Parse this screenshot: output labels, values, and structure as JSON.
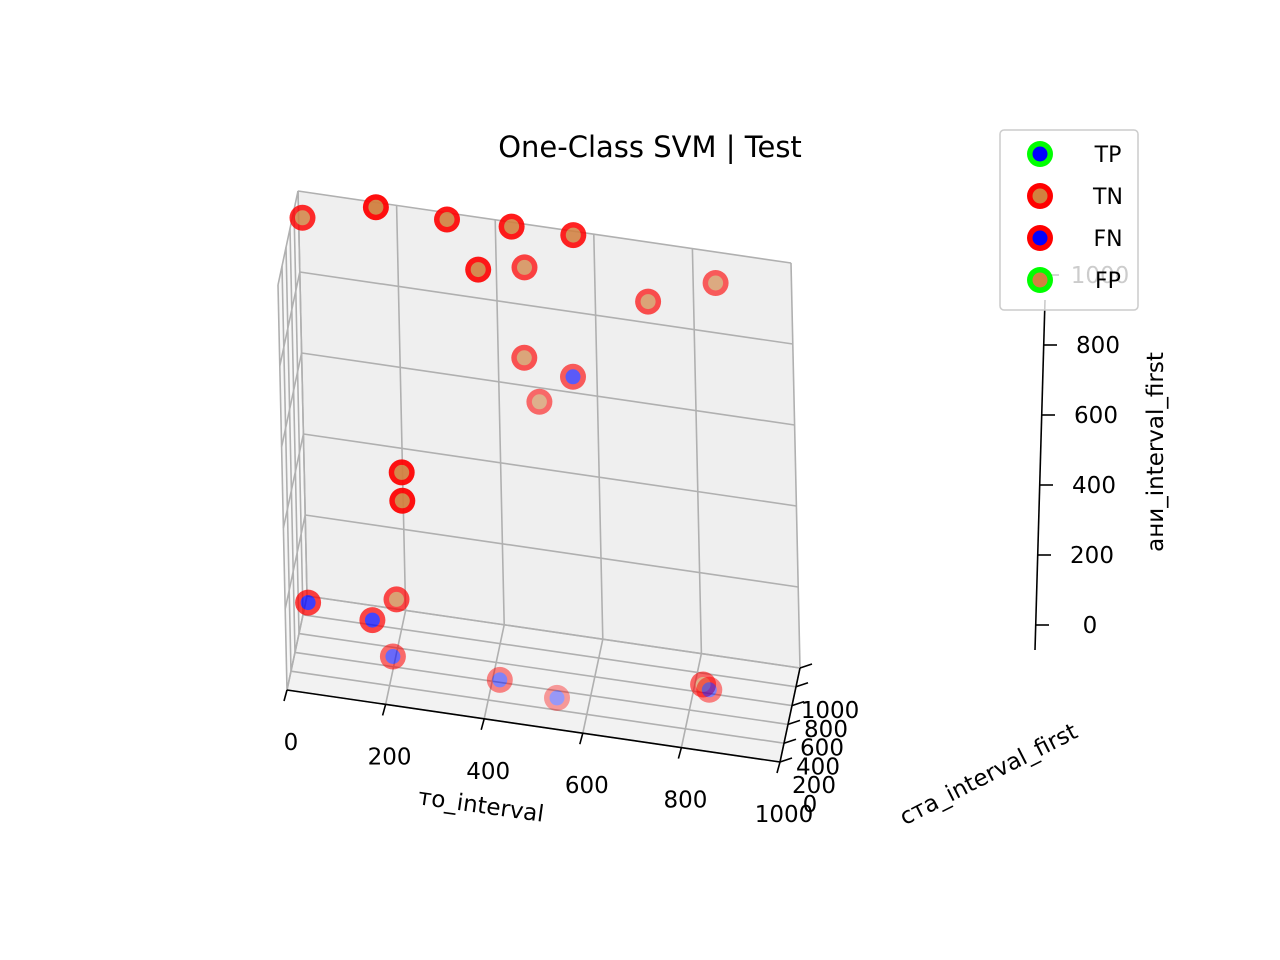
{
  "chart_data": {
    "type": "scatter",
    "projection": "3d",
    "title": "One-Class SVM | Test",
    "xlabel": "то_interval",
    "ylabel": "ста_interval_first",
    "zlabel": "ани_interval_first",
    "xlim": [
      0,
      1000
    ],
    "ylim": [
      0,
      1000
    ],
    "zlim": [
      0,
      1000
    ],
    "x_ticks": [
      "0",
      "200",
      "400",
      "600",
      "800",
      "1000"
    ],
    "y_ticks": [
      "0",
      "200",
      "400",
      "600",
      "800",
      "1000"
    ],
    "z_ticks": [
      "0",
      "200",
      "400",
      "600",
      "800",
      "1000"
    ],
    "grid": true,
    "legend_position": "top-right",
    "series": [
      {
        "name": "TP",
        "edge_color": "#00ff00",
        "face_color": "#0000ff",
        "points": []
      },
      {
        "name": "TN",
        "edge_color": "#ff0000",
        "face_color": "#d2803f",
        "points": [
          {
            "x": 20,
            "y": 730,
            "z": 1000
          },
          {
            "x": 160,
            "y": 950,
            "z": 1000
          },
          {
            "x": 305,
            "y": 930,
            "z": 1000
          },
          {
            "x": 365,
            "y": 960,
            "z": 880
          },
          {
            "x": 435,
            "y": 955,
            "z": 1000
          },
          {
            "x": 470,
            "y": 720,
            "z": 960
          },
          {
            "x": 560,
            "y": 960,
            "z": 1000
          },
          {
            "x": 470,
            "y": 620,
            "z": 760
          },
          {
            "x": 505,
            "y": 480,
            "z": 690
          },
          {
            "x": 720,
            "y": 720,
            "z": 920
          },
          {
            "x": 860,
            "y": 680,
            "z": 1000
          },
          {
            "x": 200,
            "y": 960,
            "z": 350
          },
          {
            "x": 200,
            "y": 960,
            "z": 280
          },
          {
            "x": 200,
            "y": 600,
            "z": 120
          },
          {
            "x": 820,
            "y": 600,
            "z": 20
          }
        ]
      },
      {
        "name": "FN",
        "edge_color": "#ff0000",
        "face_color": "#0000ff",
        "points": [
          {
            "x": 570,
            "y": 580,
            "z": 740
          },
          {
            "x": 20,
            "y": 600,
            "z": 80
          },
          {
            "x": 150,
            "y": 600,
            "z": 60
          },
          {
            "x": 420,
            "y": 300,
            "z": 30
          },
          {
            "x": 540,
            "y": 200,
            "z": 30
          },
          {
            "x": 200,
            "y": 380,
            "z": 30
          },
          {
            "x": 840,
            "y": 430,
            "z": 50
          }
        ]
      },
      {
        "name": "FP",
        "edge_color": "#00ff00",
        "face_color": "#d2803f",
        "points": []
      }
    ]
  }
}
